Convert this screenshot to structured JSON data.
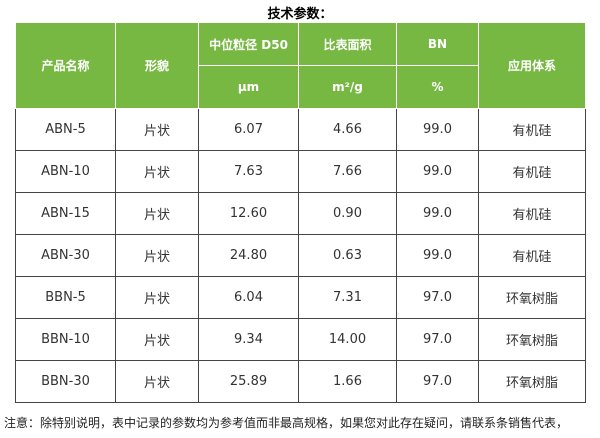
{
  "title": "技术参数：",
  "table": {
    "header": {
      "row1": [
        "产品名称",
        "形貌",
        "中位粒径 D50",
        "比表面积",
        "BN",
        "应用体系"
      ],
      "row2": [
        "μm",
        "m²/g",
        "%"
      ]
    },
    "rows": [
      [
        "ABN-5",
        "片状",
        "6.07",
        "4.66",
        "99.0",
        "有机硅"
      ],
      [
        "ABN-10",
        "片状",
        "7.63",
        "7.66",
        "99.0",
        "有机硅"
      ],
      [
        "ABN-15",
        "片状",
        "12.60",
        "0.90",
        "99.0",
        "有机硅"
      ],
      [
        "ABN-30",
        "片状",
        "24.80",
        "0.63",
        "99.0",
        "有机硅"
      ],
      [
        "BBN-5",
        "片状",
        "6.04",
        "7.31",
        "97.0",
        "环氧树脂"
      ],
      [
        "BBN-10",
        "片状",
        "9.34",
        "14.00",
        "97.0",
        "环氧树脂"
      ],
      [
        "BBN-30",
        "片状",
        "25.89",
        "1.66",
        "97.0",
        "环氧树脂"
      ]
    ]
  },
  "note": "注意：除特别说明，表中记录的参数均为参考值而非最高规格，如果您对此存在疑问，请联系条销售代表，"
}
